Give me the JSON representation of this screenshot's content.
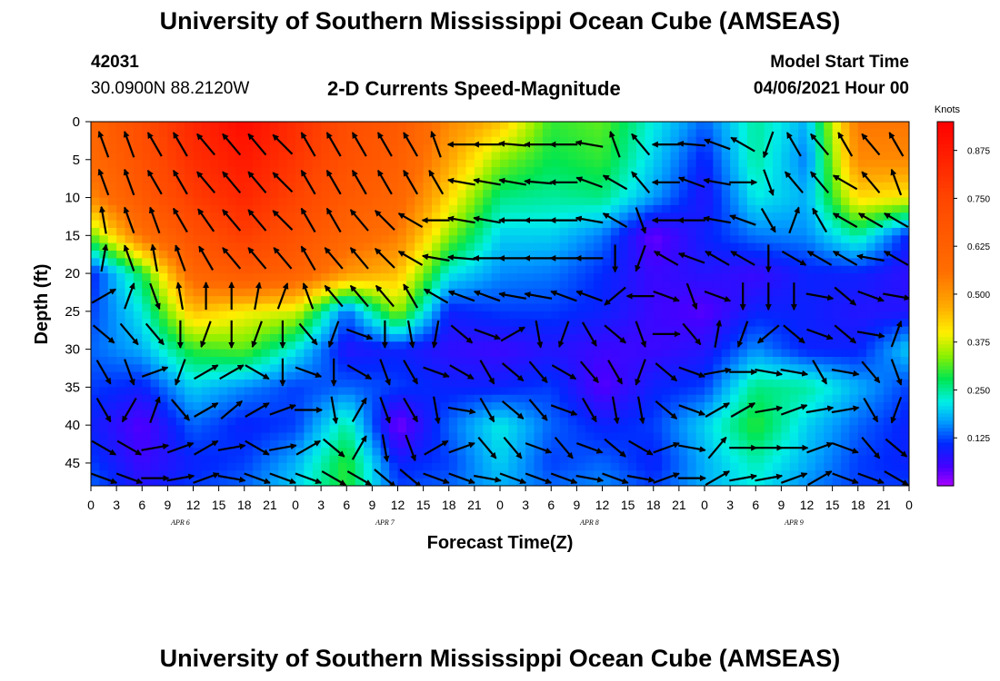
{
  "header": {
    "title_top": "University of Southern Mississippi Ocean Cube (AMSEAS)",
    "station_id": "42031",
    "coordinates": "30.0900N  88.2120W",
    "plot_title": "2-D Currents Speed-Magnitude",
    "model_start_label": "Model Start Time",
    "model_start_value": "04/06/2021 Hour 00"
  },
  "footer": {
    "title_bottom": "University of Southern Mississippi Ocean Cube (AMSEAS)"
  },
  "chart_data": {
    "type": "heatmap",
    "title": "2-D Currents Speed-Magnitude",
    "xlabel": "Forecast Time(Z)",
    "ylabel": "Depth (ft)",
    "xlim": [
      0,
      96
    ],
    "ylim": [
      48,
      0
    ],
    "x_tick_labels": [
      "0",
      "3",
      "6",
      "9",
      "12",
      "15",
      "18",
      "21",
      "0",
      "3",
      "6",
      "9",
      "12",
      "15",
      "18",
      "21",
      "0",
      "3",
      "6",
      "9",
      "12",
      "15",
      "18",
      "21",
      "0",
      "3",
      "6",
      "9",
      "12",
      "15",
      "18",
      "21",
      "0"
    ],
    "y_ticks": [
      0,
      5,
      10,
      15,
      20,
      25,
      30,
      35,
      40,
      45
    ],
    "date_labels": [
      "APR 6",
      "APR 7",
      "APR 8",
      "APR 9"
    ],
    "colorbar": {
      "label": "Knots",
      "range": [
        0,
        0.95
      ],
      "ticks": [
        "0.875",
        "0.750",
        "0.625",
        "0.500",
        "0.375",
        "0.250",
        "0.125"
      ],
      "tick_values": [
        0.875,
        0.75,
        0.625,
        0.5,
        0.375,
        0.25,
        0.125
      ]
    },
    "speed_knots": {
      "times": [
        0,
        6,
        12,
        18,
        24,
        30,
        36,
        42,
        48,
        54,
        60,
        66,
        72,
        78,
        84,
        90,
        96
      ],
      "depths": [
        0,
        5,
        10,
        15,
        20,
        25,
        30,
        35,
        40,
        45,
        48
      ],
      "values": [
        [
          0.6,
          0.72,
          0.84,
          0.92,
          0.82,
          0.72,
          0.66,
          0.52,
          0.45,
          0.3,
          0.32,
          0.22,
          0.14,
          0.25,
          0.18,
          0.55,
          0.55
        ],
        [
          0.58,
          0.7,
          0.82,
          0.88,
          0.8,
          0.7,
          0.64,
          0.48,
          0.34,
          0.28,
          0.3,
          0.2,
          0.1,
          0.25,
          0.15,
          0.52,
          0.52
        ],
        [
          0.52,
          0.66,
          0.78,
          0.84,
          0.76,
          0.66,
          0.6,
          0.42,
          0.26,
          0.25,
          0.26,
          0.17,
          0.08,
          0.22,
          0.18,
          0.42,
          0.4
        ],
        [
          0.32,
          0.56,
          0.7,
          0.78,
          0.7,
          0.6,
          0.54,
          0.34,
          0.2,
          0.2,
          0.15,
          0.03,
          0.1,
          0.15,
          0.16,
          0.25,
          0.1
        ],
        [
          0.1,
          0.28,
          0.6,
          0.66,
          0.62,
          0.5,
          0.45,
          0.22,
          0.16,
          0.15,
          0.11,
          0.06,
          0.08,
          0.06,
          0.1,
          0.1,
          0.07
        ],
        [
          0.12,
          0.22,
          0.45,
          0.4,
          0.38,
          0.14,
          0.35,
          0.1,
          0.12,
          0.12,
          0.1,
          0.06,
          0.04,
          0.1,
          0.1,
          0.08,
          0.08
        ],
        [
          0.14,
          0.18,
          0.3,
          0.32,
          0.22,
          0.08,
          0.1,
          0.07,
          0.06,
          0.08,
          0.06,
          0.06,
          0.08,
          0.16,
          0.1,
          0.1,
          0.2
        ],
        [
          0.12,
          0.1,
          0.2,
          0.16,
          0.12,
          0.14,
          0.12,
          0.1,
          0.1,
          0.12,
          0.04,
          0.1,
          0.12,
          0.26,
          0.25,
          0.18,
          0.12
        ],
        [
          0.1,
          0.04,
          0.14,
          0.1,
          0.12,
          0.25,
          0.02,
          0.14,
          0.22,
          0.14,
          0.1,
          0.12,
          0.2,
          0.3,
          0.2,
          0.14,
          0.1
        ],
        [
          0.12,
          0.06,
          0.1,
          0.12,
          0.18,
          0.3,
          0.1,
          0.12,
          0.2,
          0.12,
          0.14,
          0.1,
          0.18,
          0.24,
          0.18,
          0.12,
          0.1
        ],
        [
          0.14,
          0.08,
          0.12,
          0.14,
          0.2,
          0.3,
          0.12,
          0.14,
          0.18,
          0.14,
          0.16,
          0.12,
          0.18,
          0.22,
          0.16,
          0.12,
          0.12
        ]
      ]
    },
    "arrows": {
      "times": [
        1.5,
        4.5,
        7.5,
        10.5,
        13.5,
        16.5,
        19.5,
        22.5,
        25.5,
        28.5,
        31.5,
        34.5,
        37.5,
        40.5,
        43.5,
        46.5,
        49.5,
        52.5,
        55.5,
        58.5,
        61.5,
        64.5,
        67.5,
        70.5,
        73.5,
        76.5,
        79.5,
        82.5,
        85.5,
        88.5,
        91.5,
        94.5
      ],
      "depths": [
        3,
        8,
        13,
        18,
        23,
        28,
        33,
        38,
        43,
        47
      ],
      "direction_deg": [
        [
          340,
          340,
          330,
          330,
          320,
          320,
          320,
          315,
          330,
          330,
          330,
          330,
          330,
          340,
          270,
          270,
          275,
          270,
          270,
          280,
          340,
          320,
          270,
          275,
          290,
          300,
          200,
          330,
          320,
          330,
          320,
          330
        ],
        [
          340,
          340,
          330,
          330,
          320,
          320,
          320,
          315,
          330,
          330,
          330,
          330,
          330,
          330,
          280,
          280,
          280,
          275,
          270,
          290,
          300,
          320,
          270,
          290,
          280,
          90,
          160,
          320,
          320,
          300,
          320,
          340
        ],
        [
          350,
          340,
          340,
          330,
          325,
          320,
          320,
          315,
          330,
          330,
          320,
          315,
          300,
          270,
          280,
          280,
          270,
          270,
          270,
          280,
          300,
          160,
          270,
          270,
          280,
          290,
          150,
          20,
          330,
          300,
          300,
          300
        ],
        [
          10,
          340,
          350,
          340,
          330,
          320,
          320,
          320,
          330,
          320,
          320,
          315,
          300,
          280,
          275,
          270,
          270,
          270,
          270,
          270,
          180,
          200,
          300,
          290,
          300,
          300,
          180,
          120,
          300,
          300,
          280,
          300
        ],
        [
          60,
          20,
          160,
          350,
          0,
          0,
          10,
          20,
          340,
          320,
          320,
          320,
          330,
          300,
          290,
          290,
          280,
          280,
          290,
          290,
          230,
          270,
          110,
          160,
          110,
          180,
          180,
          180,
          100,
          130,
          110,
          100
        ],
        [
          130,
          140,
          140,
          180,
          200,
          180,
          200,
          180,
          140,
          200,
          110,
          180,
          170,
          190,
          130,
          110,
          60,
          170,
          200,
          150,
          130,
          160,
          90,
          140,
          10,
          200,
          230,
          130,
          110,
          130,
          100,
          20
        ],
        [
          150,
          160,
          70,
          200,
          60,
          60,
          120,
          180,
          110,
          180,
          120,
          160,
          150,
          110,
          120,
          150,
          130,
          140,
          120,
          140,
          150,
          200,
          130,
          110,
          80,
          90,
          100,
          100,
          150,
          100,
          140,
          160
        ],
        [
          150,
          210,
          20,
          140,
          60,
          50,
          60,
          70,
          90,
          170,
          30,
          160,
          150,
          170,
          100,
          150,
          130,
          140,
          110,
          150,
          170,
          170,
          130,
          110,
          60,
          60,
          80,
          70,
          80,
          80,
          150,
          200
        ],
        [
          120,
          120,
          80,
          70,
          60,
          80,
          120,
          80,
          60,
          130,
          30,
          170,
          160,
          60,
          70,
          140,
          140,
          110,
          140,
          110,
          130,
          120,
          70,
          100,
          40,
          90,
          90,
          90,
          70,
          110,
          140,
          130
        ],
        [
          110,
          110,
          90,
          80,
          70,
          100,
          110,
          110,
          110,
          120,
          120,
          130,
          130,
          110,
          110,
          100,
          110,
          110,
          110,
          100,
          110,
          100,
          70,
          90,
          60,
          80,
          80,
          70,
          60,
          110,
          110,
          120
        ]
      ]
    }
  }
}
